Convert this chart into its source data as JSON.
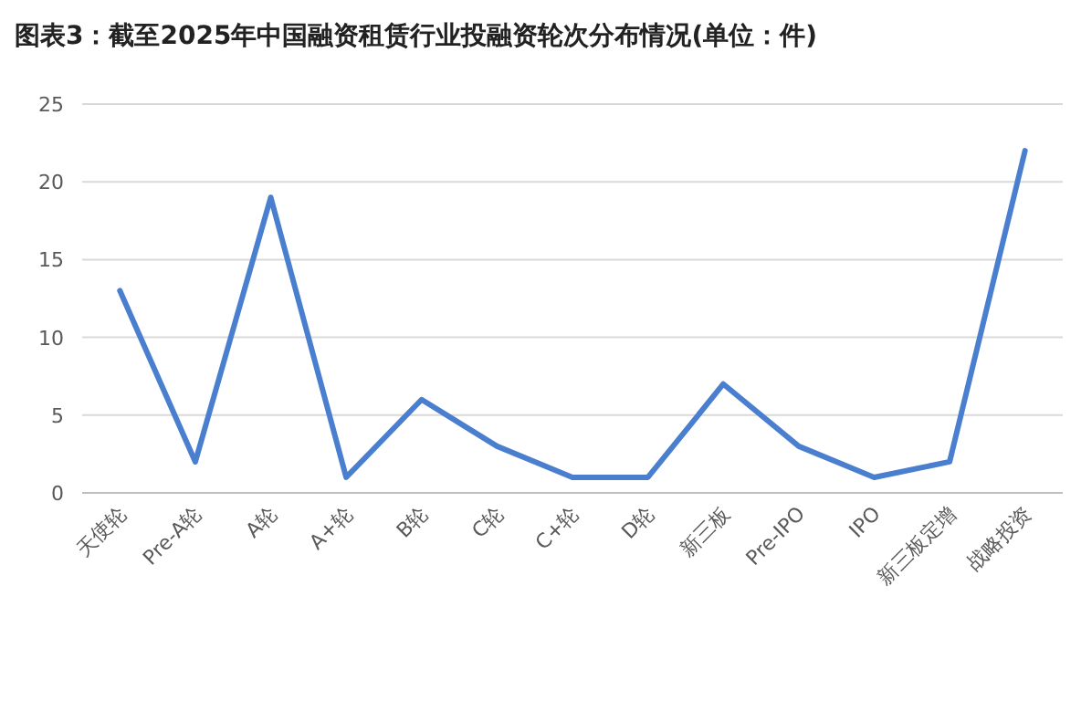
{
  "chart_data": {
    "type": "line",
    "title": "图表3：截至2025年中国融资租赁行业投融资轮次分布情况(单位：件)",
    "categories": [
      "天使轮",
      "Pre-A轮",
      "A轮",
      "A+轮",
      "B轮",
      "C轮",
      "C+轮",
      "D轮",
      "新三板",
      "Pre-IPO",
      "IPO",
      "新三板定增",
      "战略投资"
    ],
    "series": [
      {
        "color": "#4a7fcf",
        "values": [
          13,
          2,
          19,
          1,
          6,
          3,
          1,
          1,
          7,
          3,
          1,
          2,
          22
        ]
      }
    ],
    "ylim": [
      0,
      25
    ],
    "yticks": [
      0,
      5,
      10,
      15,
      20,
      25
    ],
    "grid": "y"
  }
}
